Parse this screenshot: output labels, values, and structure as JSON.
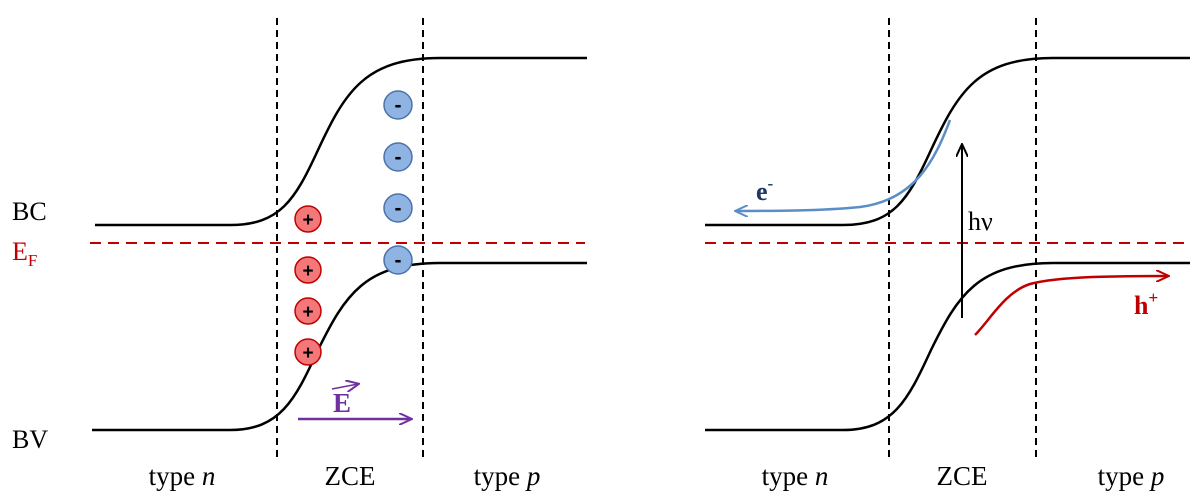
{
  "labels": {
    "bc": "BC",
    "ef_main": "E",
    "ef_sub": "F",
    "bv": "BV",
    "field": "E",
    "hv": "hν",
    "electron_main": "e",
    "electron_sup": "-",
    "hole_main": "h",
    "hole_sup": "+",
    "charge_positive": "+",
    "charge_negative": "-"
  },
  "regions": {
    "n_prefix": "type ",
    "n_letter": "n",
    "zce": "ZCE",
    "p_prefix": "type ",
    "p_letter": "p"
  },
  "colors": {
    "fermi": "#c00000",
    "positive_fill": "#f4787a",
    "positive_stroke": "#c00000",
    "negative_fill": "#8fb4e3",
    "negative_stroke": "#4a72a8",
    "field": "#7030a0",
    "electron": "#5b8ec6",
    "electron_label": "#1f3864",
    "hole": "#c00000",
    "hole_label": "#c00000"
  }
}
